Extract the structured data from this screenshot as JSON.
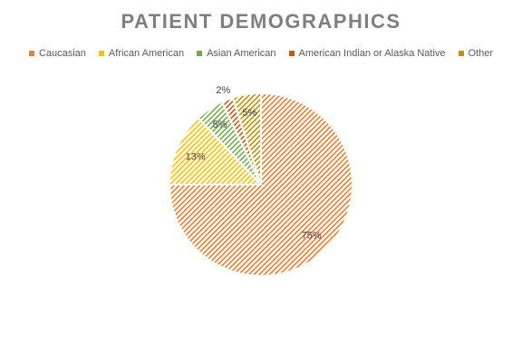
{
  "chart_data": {
    "type": "pie",
    "title": "PATIENT DEMOGRAPHICS",
    "legend_position": "top",
    "categories": [
      "Caucasian",
      "African American",
      "Asian American",
      "American Indian or Alaska Native",
      "Other"
    ],
    "values": [
      75,
      13,
      5,
      2,
      5
    ],
    "data_labels": [
      "75%",
      "13%",
      "5%",
      "2%",
      "5%"
    ],
    "colors": [
      "#ed7d31",
      "#ffc000",
      "#70ad47",
      "#c55a11",
      "#bf9000"
    ],
    "fill_pattern": "diagonal-hatch"
  }
}
